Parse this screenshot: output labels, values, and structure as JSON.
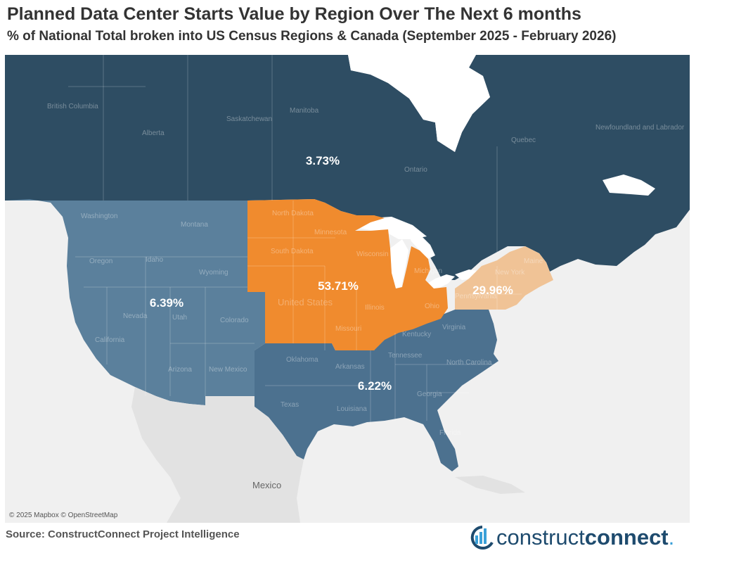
{
  "header": {
    "title": "Planned Data Center Starts Value by Region Over The Next 6 months",
    "subtitle": "% of National Total broken into US Census Regions & Canada (September 2025 - February 2026)"
  },
  "map": {
    "attribution": "© 2025 Mapbox © OpenStreetMap",
    "regions": [
      {
        "id": "canada",
        "label": "3.73%",
        "color": "#2e4d63"
      },
      {
        "id": "west",
        "label": "6.39%",
        "color": "#5b809c"
      },
      {
        "id": "midwest",
        "label": "53.71%",
        "color": "#f08b2e"
      },
      {
        "id": "northeast",
        "label": "29.96%",
        "color": "#f0c396"
      },
      {
        "id": "south",
        "label": "6.22%",
        "color": "#4c718f"
      }
    ],
    "place_labels": {
      "british_columbia": "British Columbia",
      "alberta": "Alberta",
      "saskatchewan": "Saskatchewan",
      "manitoba": "Manitoba",
      "ontario": "Ontario",
      "quebec": "Quebec",
      "newfoundland": "Newfoundland and Labrador",
      "washington": "Washington",
      "montana": "Montana",
      "oregon": "Oregon",
      "idaho": "Idaho",
      "wyoming": "Wyoming",
      "nevada": "Nevada",
      "utah": "Utah",
      "colorado": "Colorado",
      "california": "California",
      "arizona": "Arizona",
      "new_mexico": "New Mexico",
      "north_dakota": "North Dakota",
      "south_dakota": "South Dakota",
      "minnesota": "Minnesota",
      "wisconsin": "Wisconsin",
      "michigan": "Michigan",
      "united_states": "United States",
      "illinois": "Illinois",
      "ohio": "Ohio",
      "missouri": "Missouri",
      "new_york": "New York",
      "pennsylvania": "Pennsylvania",
      "maine": "Maine",
      "oklahoma": "Oklahoma",
      "arkansas": "Arkansas",
      "tennessee": "Tennessee",
      "kentucky": "Kentucky",
      "virginia": "Virginia",
      "north_carolina": "North Carolina",
      "georgia": "Georgia",
      "texas": "Texas",
      "louisiana": "Louisiana",
      "florida": "Florida",
      "mexico": "Mexico"
    }
  },
  "footer": {
    "source": "Source: ConstructConnect Project Intelligence",
    "logo_part1": "construct",
    "logo_part2": "connect",
    "logo_mark": "."
  }
}
